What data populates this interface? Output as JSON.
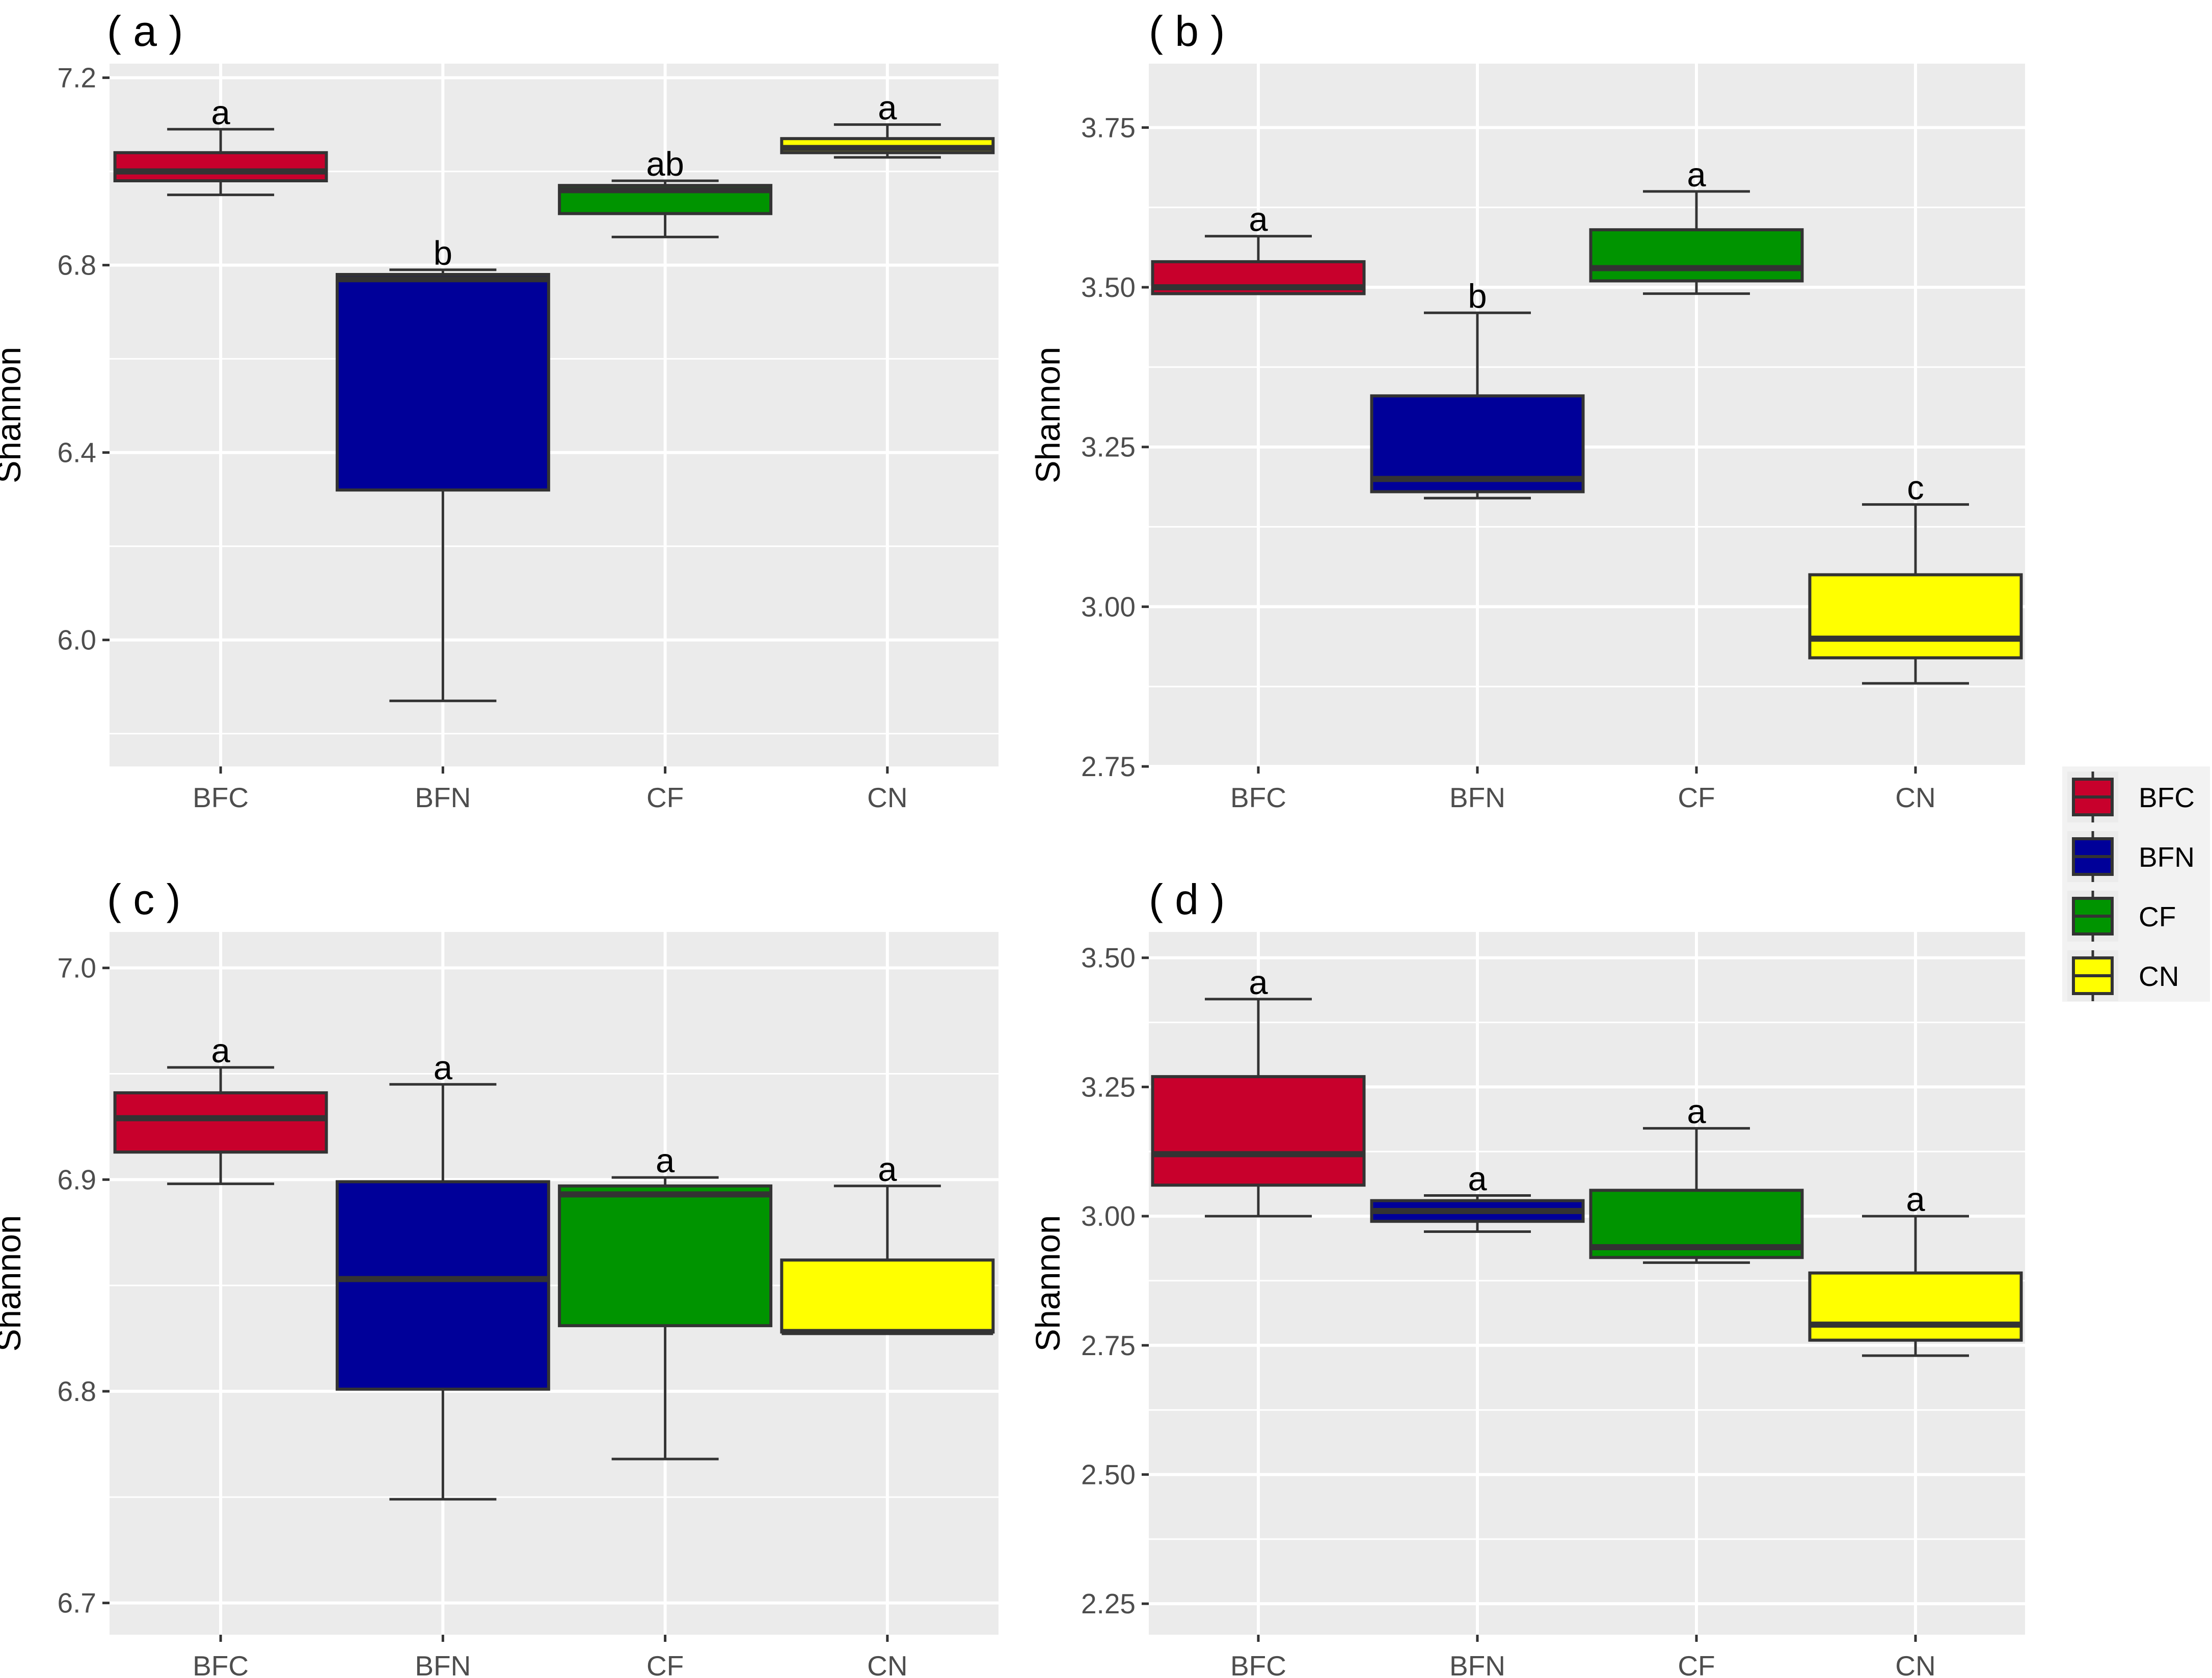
{
  "chart_data": [
    {
      "type": "box",
      "panel_label": "( a )",
      "ylabel": "Shannon",
      "xlabel": "",
      "categories": [
        "BFC",
        "BFN",
        "CF",
        "CN"
      ],
      "ylim": [
        5.73,
        7.23
      ],
      "yticks": [
        6.0,
        6.4,
        6.8,
        7.2
      ],
      "ytick_labels": [
        "6.0",
        "6.4",
        "6.8",
        "7.2"
      ],
      "boxes": [
        {
          "group": "BFC",
          "lower_whisker": 6.95,
          "q1": 6.98,
          "median": 7.0,
          "q3": 7.04,
          "upper_whisker": 7.09,
          "sig": "a"
        },
        {
          "group": "BFN",
          "lower_whisker": 5.87,
          "q1": 6.32,
          "median": 6.77,
          "q3": 6.78,
          "upper_whisker": 6.79,
          "sig": "b"
        },
        {
          "group": "CF",
          "lower_whisker": 6.86,
          "q1": 6.91,
          "median": 6.96,
          "q3": 6.97,
          "upper_whisker": 6.98,
          "sig": "ab"
        },
        {
          "group": "CN",
          "lower_whisker": 7.03,
          "q1": 7.04,
          "median": 7.05,
          "q3": 7.07,
          "upper_whisker": 7.1,
          "sig": "a"
        }
      ]
    },
    {
      "type": "box",
      "panel_label": "( b )",
      "ylabel": "Shannon",
      "xlabel": "",
      "categories": [
        "BFC",
        "BFN",
        "CF",
        "CN"
      ],
      "ylim": [
        2.75,
        3.85
      ],
      "yticks": [
        2.75,
        3.0,
        3.25,
        3.5,
        3.75
      ],
      "ytick_labels": [
        "2.75",
        "3.00",
        "3.25",
        "3.50",
        "3.75"
      ],
      "boxes": [
        {
          "group": "BFC",
          "lower_whisker": 3.49,
          "q1": 3.49,
          "median": 3.5,
          "q3": 3.54,
          "upper_whisker": 3.58,
          "sig": "a"
        },
        {
          "group": "BFN",
          "lower_whisker": 3.17,
          "q1": 3.18,
          "median": 3.2,
          "q3": 3.33,
          "upper_whisker": 3.46,
          "sig": "b"
        },
        {
          "group": "CF",
          "lower_whisker": 3.49,
          "q1": 3.51,
          "median": 3.53,
          "q3": 3.59,
          "upper_whisker": 3.65,
          "sig": "a"
        },
        {
          "group": "CN",
          "lower_whisker": 2.88,
          "q1": 2.92,
          "median": 2.95,
          "q3": 3.05,
          "upper_whisker": 3.16,
          "sig": "c"
        }
      ]
    },
    {
      "type": "box",
      "panel_label": "( c )",
      "ylabel": "Shannon",
      "xlabel": "",
      "categories": [
        "BFC",
        "BFN",
        "CF",
        "CN"
      ],
      "ylim": [
        6.685,
        7.017
      ],
      "yticks": [
        6.7,
        6.8,
        6.9,
        7.0
      ],
      "ytick_labels": [
        "6.7",
        "6.8",
        "6.9",
        "7.0"
      ],
      "boxes": [
        {
          "group": "BFC",
          "lower_whisker": 6.898,
          "q1": 6.913,
          "median": 6.929,
          "q3": 6.941,
          "upper_whisker": 6.953,
          "sig": "a"
        },
        {
          "group": "BFN",
          "lower_whisker": 6.749,
          "q1": 6.801,
          "median": 6.853,
          "q3": 6.899,
          "upper_whisker": 6.945,
          "sig": "a"
        },
        {
          "group": "CF",
          "lower_whisker": 6.768,
          "q1": 6.831,
          "median": 6.893,
          "q3": 6.897,
          "upper_whisker": 6.901,
          "sig": "a"
        },
        {
          "group": "CN",
          "lower_whisker": 6.828,
          "q1": 6.828,
          "median": 6.828,
          "q3": 6.862,
          "upper_whisker": 6.897,
          "sig": "a"
        }
      ]
    },
    {
      "type": "box",
      "panel_label": "( d )",
      "ylabel": "Shannon",
      "xlabel": "",
      "categories": [
        "BFC",
        "BFN",
        "CF",
        "CN"
      ],
      "ylim": [
        2.19,
        3.55
      ],
      "yticks": [
        2.25,
        2.5,
        2.75,
        3.0,
        3.25,
        3.5
      ],
      "ytick_labels": [
        "2.25",
        "2.50",
        "2.75",
        "3.00",
        "3.25",
        "3.50"
      ],
      "boxes": [
        {
          "group": "BFC",
          "lower_whisker": 3.0,
          "q1": 3.06,
          "median": 3.12,
          "q3": 3.27,
          "upper_whisker": 3.42,
          "sig": "a"
        },
        {
          "group": "BFN",
          "lower_whisker": 2.97,
          "q1": 2.99,
          "median": 3.01,
          "q3": 3.03,
          "upper_whisker": 3.04,
          "sig": "a"
        },
        {
          "group": "CF",
          "lower_whisker": 2.91,
          "q1": 2.92,
          "median": 2.94,
          "q3": 3.05,
          "upper_whisker": 3.17,
          "sig": "a"
        },
        {
          "group": "CN",
          "lower_whisker": 2.73,
          "q1": 2.76,
          "median": 2.79,
          "q3": 2.89,
          "upper_whisker": 3.0,
          "sig": "a"
        }
      ]
    }
  ],
  "legend": {
    "items": [
      {
        "label": "BFC",
        "color": "#c8002c"
      },
      {
        "label": "BFN",
        "color": "#000099"
      },
      {
        "label": "CF",
        "color": "#009400"
      },
      {
        "label": "CN",
        "color": "#ffff00"
      }
    ]
  },
  "colors": {
    "panel_background": "#ebebeb",
    "grid": "#ffffff",
    "box_outline": "#333333"
  }
}
